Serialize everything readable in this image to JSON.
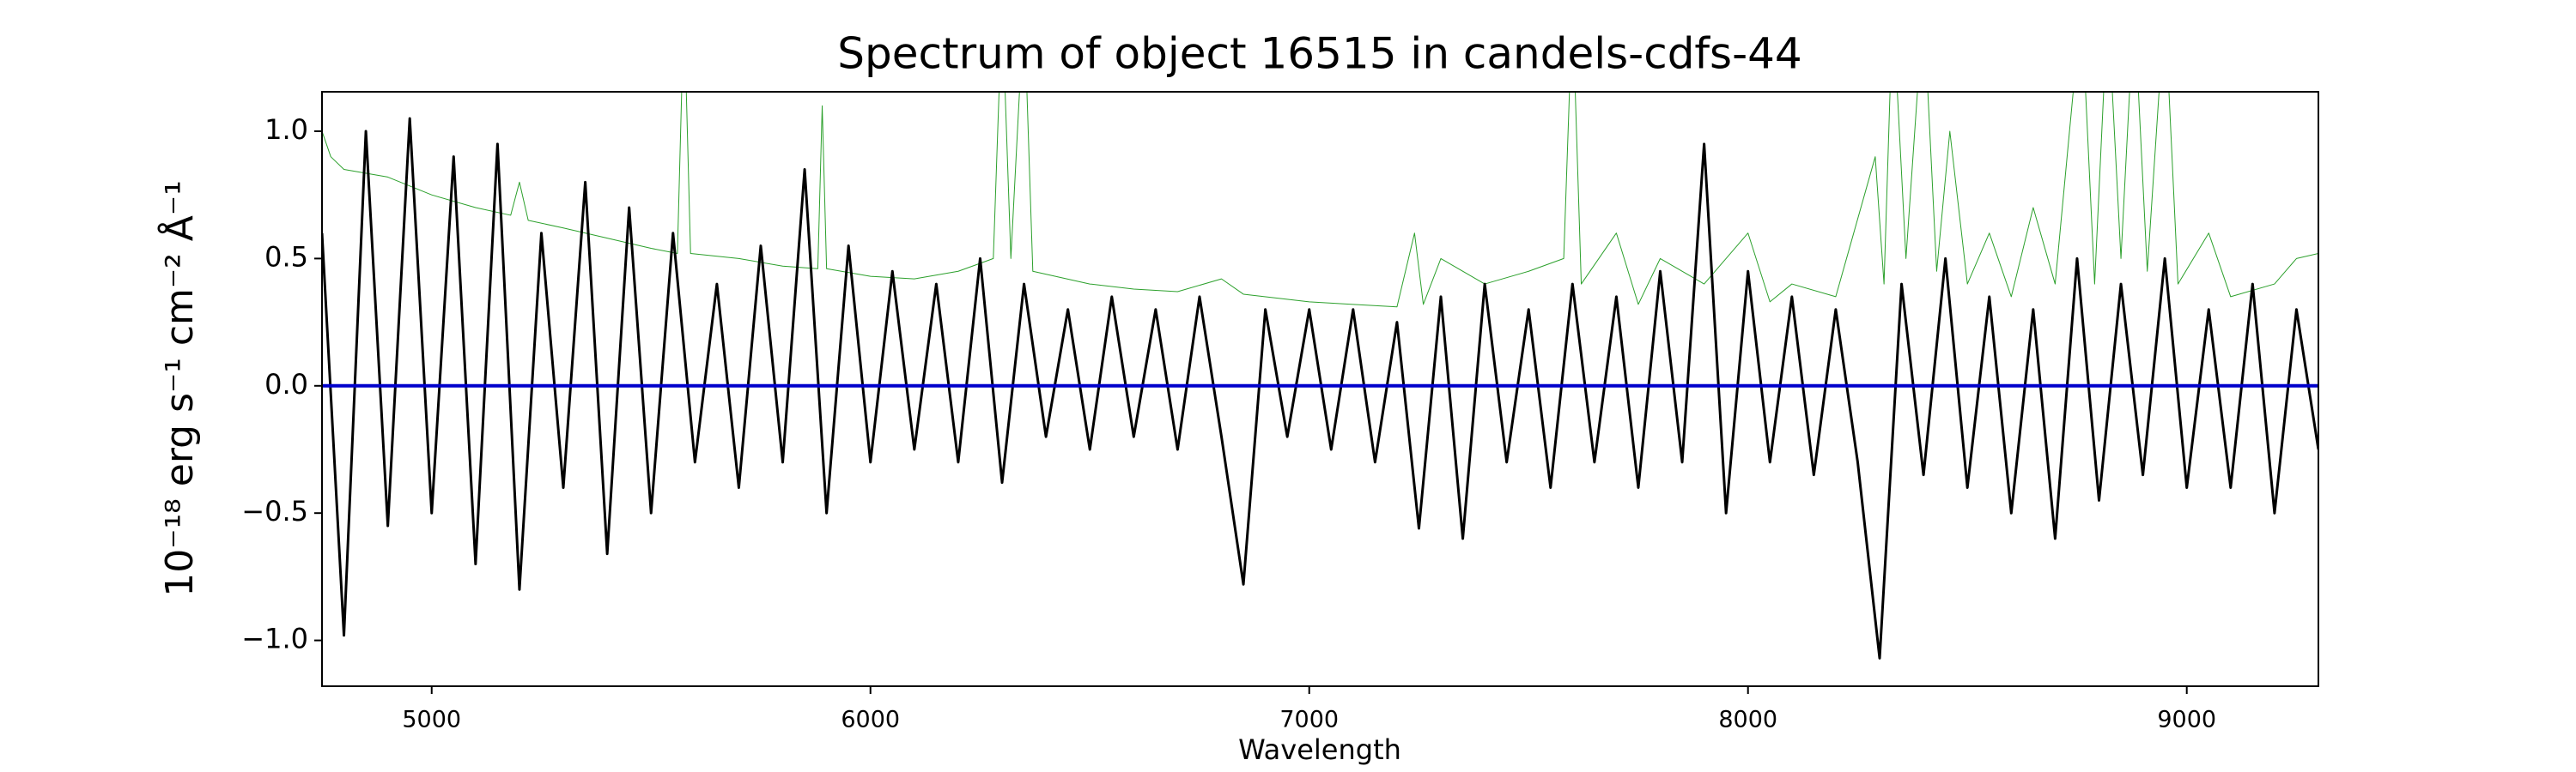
{
  "chart_data": {
    "type": "line",
    "title": "Spectrum of object 16515 in candels-cdfs-44",
    "xlabel": "Wavelength",
    "ylabel": "10⁻¹⁸ erg s⁻¹ cm⁻² Å⁻¹",
    "xlim": [
      4750,
      9300
    ],
    "ylim": [
      -1.18,
      1.155
    ],
    "xticks": [
      5000,
      6000,
      7000,
      8000,
      9000
    ],
    "yticks": [
      {
        "value": -1.0,
        "label": "−1.0"
      },
      {
        "value": -0.5,
        "label": "−0.5"
      },
      {
        "value": 0.0,
        "label": "0.0"
      },
      {
        "value": 0.5,
        "label": "0.5"
      },
      {
        "value": 1.0,
        "label": "1.0"
      }
    ],
    "series": [
      {
        "color": "#2ca02c",
        "x": [
          4750,
          4770,
          4800,
          4900,
          5000,
          5100,
          5180,
          5200,
          5220,
          5300,
          5400,
          5500,
          5560,
          5575,
          5590,
          5700,
          5800,
          5880,
          5890,
          5900,
          6000,
          6100,
          6200,
          6280,
          6300,
          6320,
          6350,
          6370,
          6500,
          6600,
          6700,
          6800,
          6850,
          7000,
          7100,
          7200,
          7240,
          7260,
          7300,
          7400,
          7500,
          7580,
          7600,
          7620,
          7700,
          7750,
          7800,
          7900,
          8000,
          8050,
          8100,
          8200,
          8290,
          8310,
          8330,
          8360,
          8400,
          8430,
          8460,
          8500,
          8550,
          8600,
          8650,
          8700,
          8760,
          8790,
          8820,
          8850,
          8880,
          8910,
          8950,
          8980,
          9050,
          9100,
          9200,
          9250,
          9300
        ],
        "values": [
          1.0,
          0.9,
          0.85,
          0.82,
          0.75,
          0.7,
          0.67,
          0.8,
          0.65,
          0.62,
          0.58,
          0.54,
          0.52,
          1.5,
          0.52,
          0.5,
          0.47,
          0.46,
          1.1,
          0.46,
          0.43,
          0.42,
          0.45,
          0.5,
          1.5,
          0.5,
          1.5,
          0.45,
          0.4,
          0.38,
          0.37,
          0.42,
          0.36,
          0.33,
          0.32,
          0.31,
          0.6,
          0.32,
          0.5,
          0.4,
          0.45,
          0.5,
          1.5,
          0.4,
          0.6,
          0.32,
          0.5,
          0.4,
          0.6,
          0.33,
          0.4,
          0.35,
          0.9,
          0.4,
          1.5,
          0.5,
          1.5,
          0.45,
          1.0,
          0.4,
          0.6,
          0.35,
          0.7,
          0.4,
          1.5,
          0.4,
          1.5,
          0.5,
          1.5,
          0.45,
          1.5,
          0.4,
          0.6,
          0.35,
          0.4,
          0.5,
          0.52
        ],
        "width": 1
      },
      {
        "color": "#000000",
        "x": [
          4750,
          4800,
          4850,
          4900,
          4950,
          5000,
          5050,
          5100,
          5150,
          5200,
          5250,
          5300,
          5350,
          5400,
          5450,
          5500,
          5550,
          5600,
          5650,
          5700,
          5750,
          5800,
          5850,
          5900,
          5950,
          6000,
          6050,
          6100,
          6150,
          6200,
          6250,
          6300,
          6350,
          6400,
          6450,
          6500,
          6550,
          6600,
          6650,
          6700,
          6750,
          6800,
          6850,
          6900,
          6950,
          7000,
          7050,
          7100,
          7150,
          7200,
          7250,
          7300,
          7350,
          7400,
          7450,
          7500,
          7550,
          7600,
          7650,
          7700,
          7750,
          7800,
          7850,
          7900,
          7950,
          8000,
          8050,
          8100,
          8150,
          8200,
          8250,
          8300,
          8350,
          8400,
          8450,
          8500,
          8550,
          8600,
          8650,
          8700,
          8750,
          8800,
          8850,
          8900,
          8950,
          9000,
          9050,
          9100,
          9150,
          9200,
          9250,
          9300
        ],
        "values": [
          0.6,
          -0.98,
          1.0,
          -0.55,
          1.05,
          -0.5,
          0.9,
          -0.7,
          0.95,
          -0.8,
          0.6,
          -0.4,
          0.8,
          -0.66,
          0.7,
          -0.5,
          0.6,
          -0.3,
          0.4,
          -0.4,
          0.55,
          -0.3,
          0.85,
          -0.5,
          0.55,
          -0.3,
          0.45,
          -0.25,
          0.4,
          -0.3,
          0.5,
          -0.38,
          0.4,
          -0.2,
          0.3,
          -0.25,
          0.35,
          -0.2,
          0.3,
          -0.25,
          0.35,
          -0.2,
          -0.78,
          0.3,
          -0.2,
          0.3,
          -0.25,
          0.3,
          -0.3,
          0.25,
          -0.56,
          0.35,
          -0.6,
          0.4,
          -0.3,
          0.3,
          -0.4,
          0.4,
          -0.3,
          0.35,
          -0.4,
          0.45,
          -0.3,
          0.95,
          -0.5,
          0.45,
          -0.3,
          0.35,
          -0.35,
          0.3,
          -0.3,
          -1.07,
          0.4,
          -0.35,
          0.5,
          -0.4,
          0.35,
          -0.5,
          0.3,
          -0.6,
          0.5,
          -0.45,
          0.4,
          -0.35,
          0.5,
          -0.4,
          0.3,
          -0.4,
          0.4,
          -0.5,
          0.3,
          -0.25
        ],
        "width": 3
      },
      {
        "color": "#0000cc",
        "x": [
          4750,
          9300
        ],
        "values": [
          0,
          0
        ],
        "width": 4
      }
    ]
  }
}
